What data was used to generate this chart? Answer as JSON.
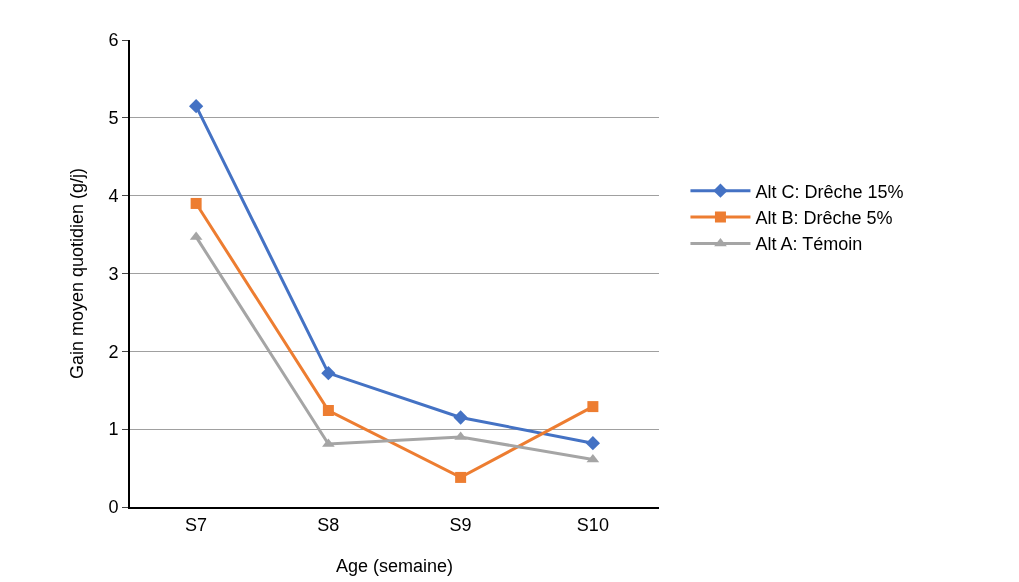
{
  "chart_data": {
    "type": "line",
    "xlabel": "Age (semaine)",
    "ylabel": "Gain moyen quotidien (g/j)",
    "categories": [
      "S7",
      "S8",
      "S9",
      "S10"
    ],
    "series": [
      {
        "name": "Alt C: Drêche 15%",
        "color": "#4472c4",
        "marker": "diamond",
        "values": [
          5.15,
          1.72,
          1.15,
          0.82
        ]
      },
      {
        "name": "Alt B: Drêche 5%",
        "color": "#ed7d31",
        "marker": "square",
        "values": [
          3.9,
          1.24,
          0.38,
          1.29
        ]
      },
      {
        "name": "Alt A: Témoin",
        "color": "#a5a5a5",
        "marker": "triangle",
        "values": [
          3.47,
          0.81,
          0.9,
          0.61
        ]
      }
    ],
    "ylim": [
      0,
      6
    ],
    "yticks": [
      0,
      1,
      2,
      3,
      4,
      5,
      6
    ],
    "grid": "y",
    "legend": "right",
    "line_style": "solid"
  }
}
